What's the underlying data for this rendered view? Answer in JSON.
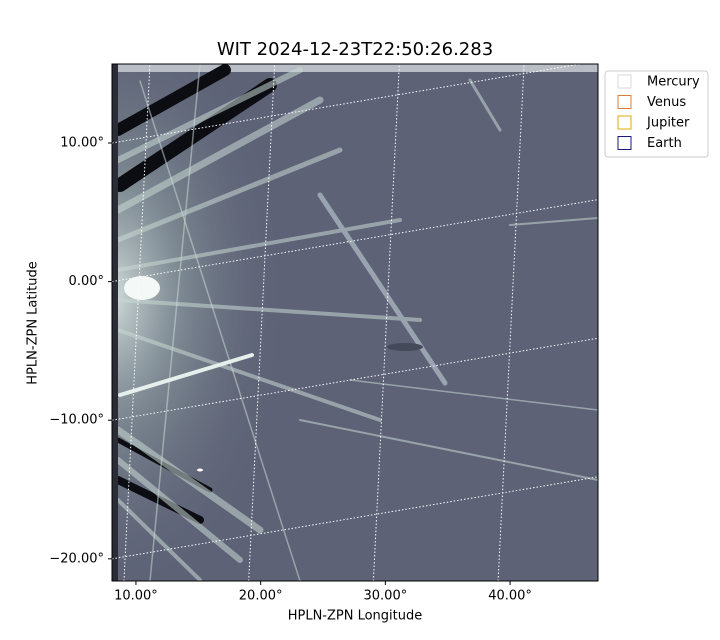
{
  "chart_data": {
    "type": "image",
    "title": "WIT 2024-12-23T22:50:26.283",
    "xlabel": "HPLN-ZPN Longitude",
    "ylabel": "HPLN-ZPN Latitude",
    "xlim": [
      8.08,
      47.05
    ],
    "ylim": [
      -21.6,
      15.7
    ],
    "xticks": [
      {
        "value": 10,
        "label": "10.00°"
      },
      {
        "value": 20,
        "label": "20.00°"
      },
      {
        "value": 30,
        "label": "30.00°"
      },
      {
        "value": 40,
        "label": "40.00°"
      }
    ],
    "yticks": [
      {
        "value": 10,
        "label": "10.00°"
      },
      {
        "value": 0,
        "label": "0.00°"
      },
      {
        "value": -10,
        "label": "−10.00°"
      },
      {
        "value": -20,
        "label": "−20.00°"
      }
    ],
    "grid": true,
    "legend_position": "outside-upper-right",
    "series": [
      {
        "name": "Mercury",
        "color": "#d9d9d9"
      },
      {
        "name": "Venus",
        "color": "#e07b39"
      },
      {
        "name": "Jupiter",
        "color": "#e0a800"
      },
      {
        "name": "Earth",
        "color": "#1a1a80"
      }
    ]
  }
}
